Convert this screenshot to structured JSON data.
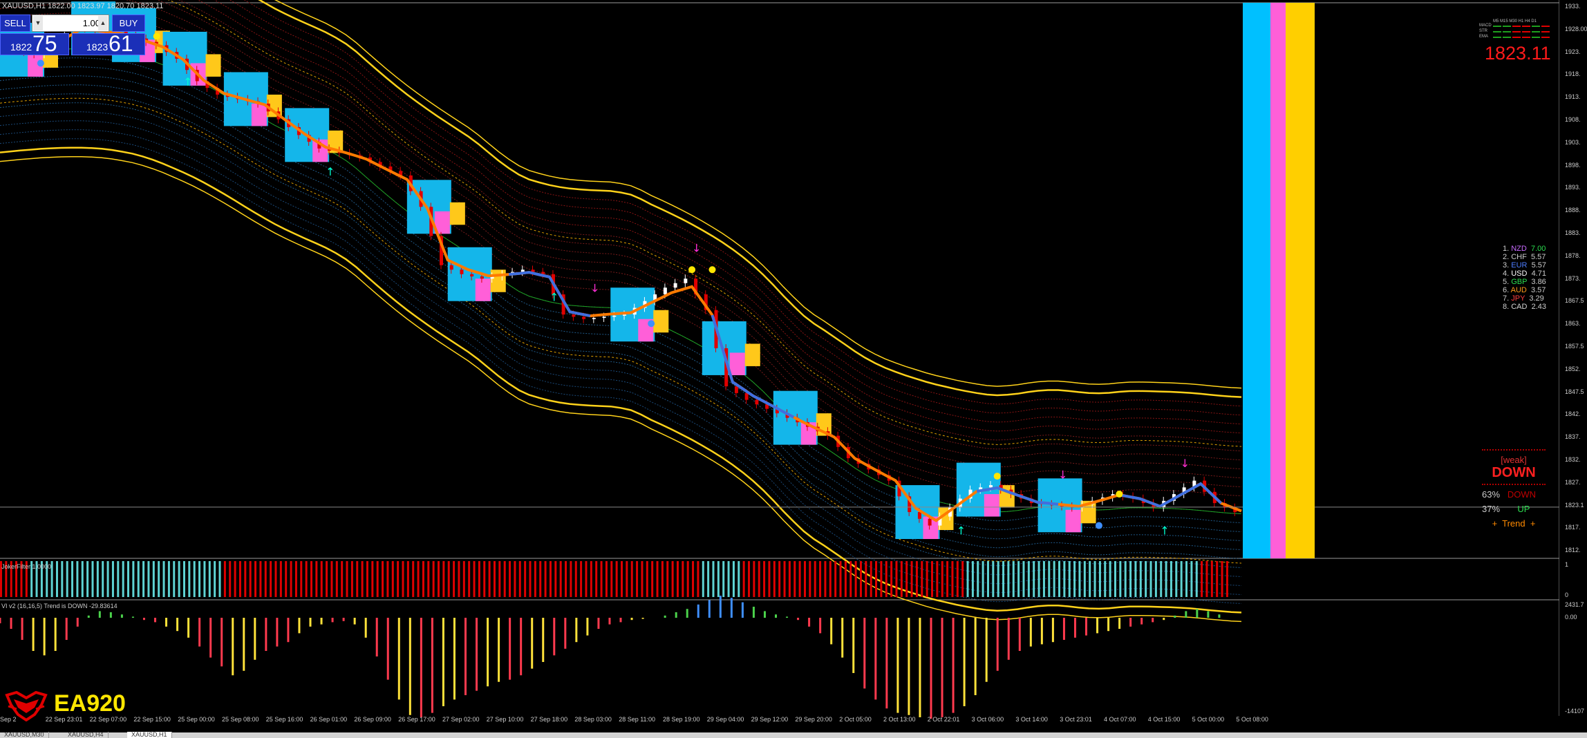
{
  "window": {
    "title": "XAUUSD,H1  1822.00 1823.97 1820.70 1823.11"
  },
  "trade_panel": {
    "sell_label": "SELL",
    "buy_label": "BUY",
    "lot_value": "1.00",
    "sell_price_small": "1822",
    "sell_price_big": "75",
    "buy_price_small": "1823",
    "buy_price_big": "61"
  },
  "current_price": "1823.11",
  "price_axis": {
    "labels": [
      "1933.",
      "1928.00",
      "1923.",
      "1918.",
      "1913.",
      "1908.",
      "1903.",
      "1898.",
      "1893.",
      "1888.",
      "1883.",
      "1878.",
      "1873.",
      "1867.5",
      "1863.",
      "1857.5",
      "1852.",
      "1847.5",
      "1842.",
      "1837.",
      "1832.",
      "1827.",
      "1823.1",
      "1817.",
      "1812."
    ],
    "ind1_labels": [
      "1",
      "0"
    ],
    "ind2_labels": [
      "2431.7",
      "0.00",
      "-14107"
    ]
  },
  "time_axis": [
    "Sep 2",
    "22 Sep 23:01",
    "22 Sep 07:00",
    "22 Sep 15:00",
    "25 Sep 00:00",
    "25 Sep 08:00",
    "25 Sep 16:00",
    "26 Sep 01:00",
    "26 Sep 09:00",
    "26 Sep 17:00",
    "27 Sep 02:00",
    "27 Sep 10:00",
    "27 Sep 18:00",
    "28 Sep 03:00",
    "28 Sep 11:00",
    "28 Sep 19:00",
    "29 Sep 04:00",
    "29 Sep 12:00",
    "29 Sep 20:00",
    "2 Oct 05:00",
    "2 Oct 13:00",
    "2 Oct 22:01",
    "3 Oct 06:00",
    "3 Oct 14:00",
    "3 Oct 23:01",
    "4 Oct 07:00",
    "4 Oct 15:00",
    "5 Oct 00:00",
    "5 Oct 08:00"
  ],
  "currency_strength": [
    {
      "rank": "1.",
      "name": "NZD",
      "value": "7.00",
      "color": "#c86bff"
    },
    {
      "rank": "2.",
      "name": "CHF",
      "value": "5.57",
      "color": "#cccccc"
    },
    {
      "rank": "3.",
      "name": "EUR",
      "value": "5.57",
      "color": "#4d7dff"
    },
    {
      "rank": "4.",
      "name": "USD",
      "value": "4.71",
      "color": "#ffffff"
    },
    {
      "rank": "5.",
      "name": "GBP",
      "value": "3.86",
      "color": "#2bdc4f"
    },
    {
      "rank": "6.",
      "name": "AUD",
      "value": "3.57",
      "color": "#ff9a1a"
    },
    {
      "rank": "7.",
      "name": "JPY",
      "value": "3.29",
      "color": "#ff3f3f"
    },
    {
      "rank": "8.",
      "name": "CAD",
      "value": "2.43",
      "color": "#d6d6d6"
    }
  ],
  "trend_panel": {
    "weak": "[weak]",
    "direction": "DOWN",
    "down_pct": "63%",
    "down_label": "DOWN",
    "up_pct": "37%",
    "up_label": "UP",
    "trend_label": "+  Trend  +"
  },
  "indicators": {
    "filter_title": "JokerFilter 1.0000",
    "vi_title": "VI v2 (16,16,5) Trend is DOWN -29.83614"
  },
  "logo_text": "EA920",
  "tabs": [
    "XAUUSD,M30",
    "XAUUSD,H4",
    "XAUUSD,H1"
  ],
  "mini_panel": {
    "header": "M5 M15 M30 H1 H4 D1",
    "rows": [
      "MACD",
      "STR",
      "EMA"
    ]
  },
  "chart_data": {
    "type": "candlestick",
    "symbol": "XAUUSD",
    "timeframe": "H1",
    "ylim": [
      1812,
      1933
    ],
    "price_path": [
      [
        0,
        1926
      ],
      [
        2,
        1924
      ],
      [
        4,
        1930
      ],
      [
        6,
        1929
      ],
      [
        8,
        1926
      ],
      [
        9,
        1923
      ],
      [
        10,
        1918
      ],
      [
        11,
        1915
      ],
      [
        13,
        1913
      ],
      [
        15,
        1906
      ],
      [
        16,
        1903
      ],
      [
        18,
        1901
      ],
      [
        20,
        1897
      ],
      [
        21,
        1890
      ],
      [
        22,
        1877
      ],
      [
        23,
        1875
      ],
      [
        24,
        1874
      ],
      [
        26,
        1876
      ],
      [
        27,
        1875
      ],
      [
        28,
        1866
      ],
      [
        29,
        1865
      ],
      [
        31,
        1866
      ],
      [
        33,
        1872
      ],
      [
        34,
        1874
      ],
      [
        35,
        1867
      ],
      [
        36,
        1850
      ],
      [
        37,
        1847
      ],
      [
        39,
        1843
      ],
      [
        41,
        1839
      ],
      [
        42,
        1834
      ],
      [
        44,
        1829
      ],
      [
        45,
        1822
      ],
      [
        46,
        1819
      ],
      [
        48,
        1827
      ],
      [
        49,
        1828
      ],
      [
        51,
        1824
      ],
      [
        53,
        1823
      ],
      [
        55,
        1826
      ],
      [
        56,
        1825
      ],
      [
        57,
        1823
      ],
      [
        59,
        1829
      ],
      [
        60,
        1824
      ],
      [
        61,
        1822
      ]
    ],
    "indicator_filter_segments": [
      {
        "from": 0,
        "to": 1.5,
        "color": "#e00000"
      },
      {
        "from": 1.5,
        "to": 11,
        "color": "#5fd3d3"
      },
      {
        "from": 11,
        "to": 34.5,
        "color": "#e00000"
      },
      {
        "from": 34.5,
        "to": 36.5,
        "color": "#5fd3d3"
      },
      {
        "from": 36.5,
        "to": 47.5,
        "color": "#e00000"
      },
      {
        "from": 47.5,
        "to": 59,
        "color": "#5fd3d3"
      },
      {
        "from": 59,
        "to": 60.5,
        "color": "#e00000"
      }
    ],
    "vi_histogram": [
      -5,
      -10,
      -20,
      -30,
      -34,
      -30,
      -20,
      -8,
      2,
      6,
      5,
      3,
      1,
      -2,
      -4,
      -8,
      -12,
      -18,
      -26,
      -36,
      -44,
      -52,
      -48,
      -38,
      -30,
      -26,
      -22,
      -14,
      -8,
      -6,
      -4,
      -3,
      -6,
      -18,
      -35,
      -56,
      -74,
      -88,
      -90,
      -86,
      -80,
      -74,
      -70,
      -66,
      -62,
      -58,
      -56,
      -52,
      -46,
      -40,
      -34,
      -28,
      -22,
      -16,
      -10,
      -6,
      -4,
      -2,
      -1,
      0,
      2,
      5,
      8,
      12,
      16,
      20,
      18,
      14,
      10,
      6,
      3,
      1,
      -2,
      -8,
      -14,
      -24,
      -36,
      -50,
      -64,
      -74,
      -82,
      -86,
      -88,
      -90,
      -92,
      -90,
      -86,
      -80,
      -70,
      -58,
      -48,
      -38,
      -30,
      -26,
      -24,
      -22,
      -20,
      -18,
      -16,
      -14,
      -12,
      -10,
      -8,
      -6,
      -4,
      -2,
      2,
      6,
      8,
      6,
      3,
      0
    ],
    "current_price": 1823.11
  }
}
